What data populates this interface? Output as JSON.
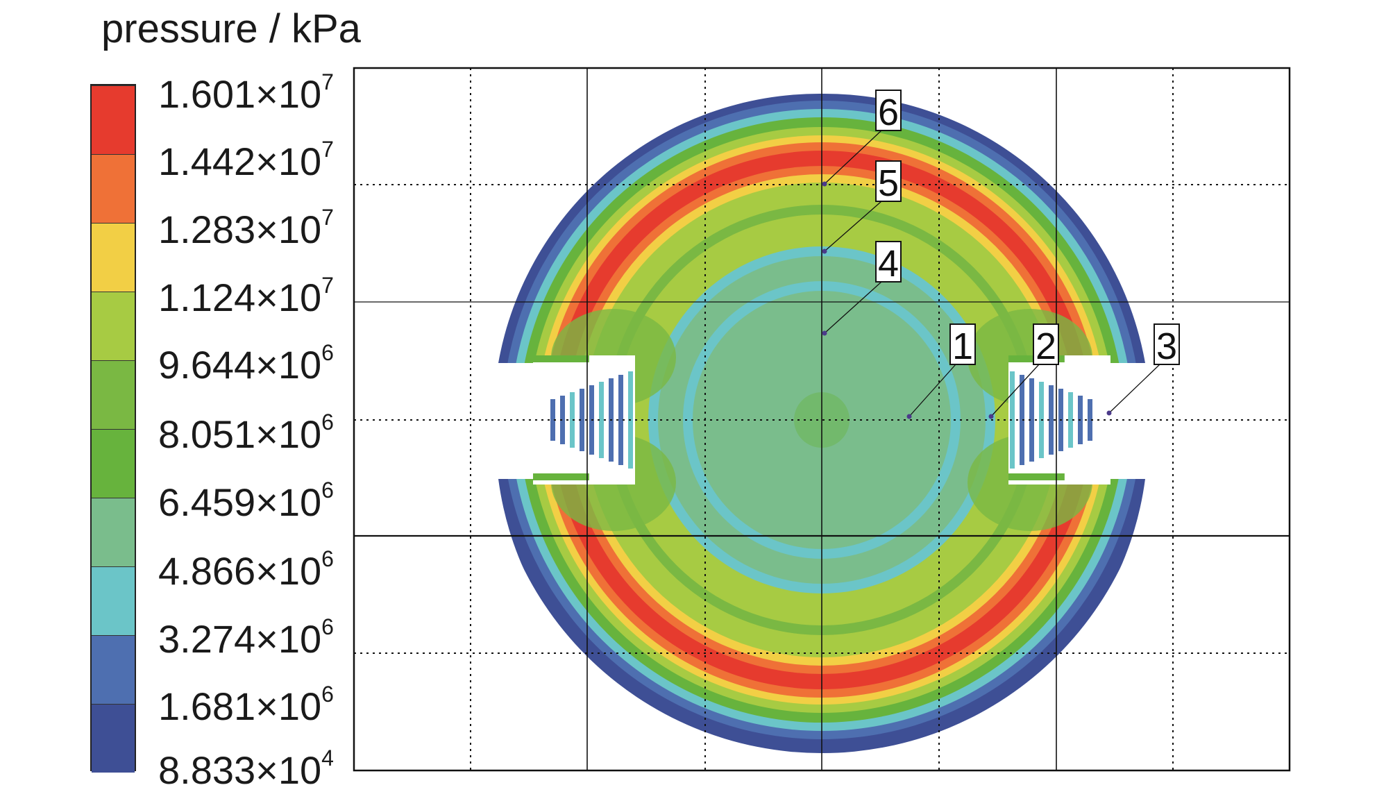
{
  "legend": {
    "title": "pressure / kPa",
    "levels": [
      {
        "mantissa": "1.601",
        "exp": "7",
        "color": "#e63b2e"
      },
      {
        "mantissa": "1.442",
        "exp": "7",
        "color": "#ef7137"
      },
      {
        "mantissa": "1.283",
        "exp": "7",
        "color": "#f2cf45"
      },
      {
        "mantissa": "1.124",
        "exp": "7",
        "color": "#a7cb43"
      },
      {
        "mantissa": "9.644",
        "exp": "6",
        "color": "#7ab843"
      },
      {
        "mantissa": "8.051",
        "exp": "6",
        "color": "#67b33d"
      },
      {
        "mantissa": "6.459",
        "exp": "6",
        "color": "#7abd8c"
      },
      {
        "mantissa": "4.866",
        "exp": "6",
        "color": "#6bc5c8"
      },
      {
        "mantissa": "3.274",
        "exp": "6",
        "color": "#4e6fb0"
      },
      {
        "mantissa": "1.681",
        "exp": "6",
        "color": "#3e4f95"
      },
      {
        "mantissa": "8.833",
        "exp": "4",
        "color": "#3e4f95"
      }
    ]
  },
  "plot": {
    "probes": [
      {
        "label": "1"
      },
      {
        "label": "2"
      },
      {
        "label": "3"
      },
      {
        "label": "4"
      },
      {
        "label": "5"
      },
      {
        "label": "6"
      }
    ]
  }
}
